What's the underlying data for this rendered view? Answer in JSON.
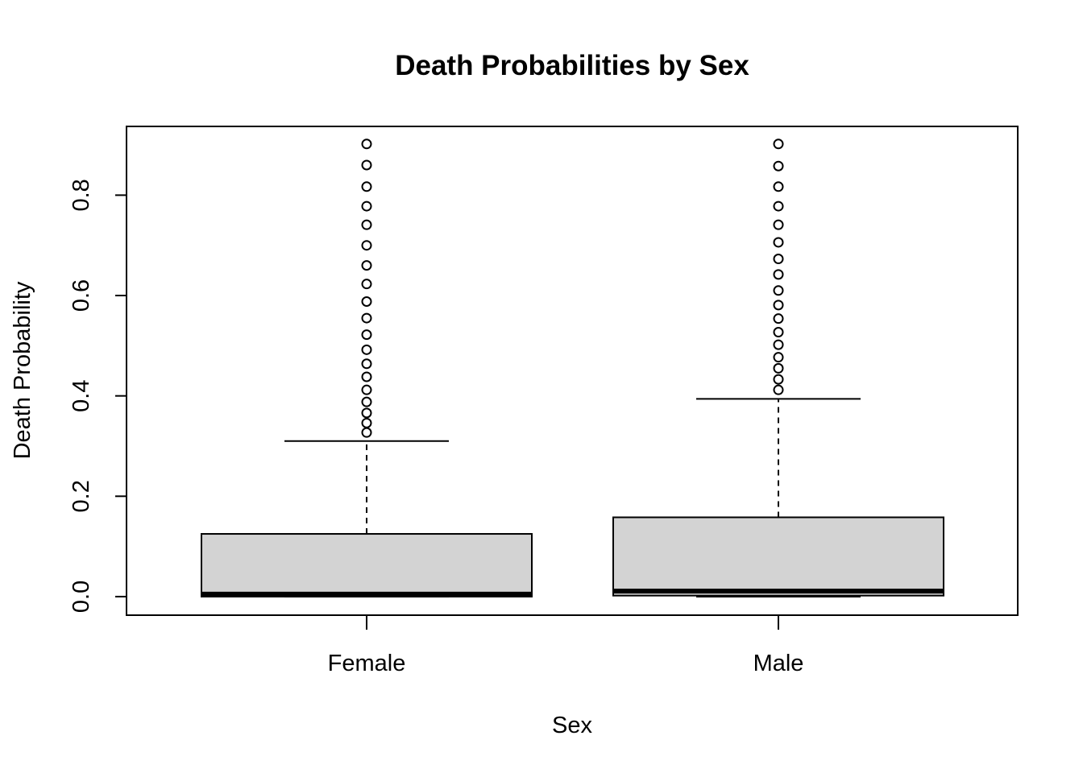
{
  "chart_data": {
    "type": "boxplot",
    "title": "Death Probabilities by Sex",
    "xlabel": "Sex",
    "ylabel": "Death Probability",
    "ylim": [
      -0.037,
      0.937
    ],
    "yticks": [
      "0.0",
      "0.2",
      "0.4",
      "0.6",
      "0.8"
    ],
    "categories": [
      "Female",
      "Male"
    ],
    "box_color": "#d3d3d3",
    "grid": false,
    "boxes": [
      {
        "category": "Female",
        "whisker_low": 0.0,
        "q1": 0.0,
        "median": 0.005,
        "q3": 0.125,
        "whisker_high": 0.31,
        "outliers": [
          0.327,
          0.346,
          0.366,
          0.388,
          0.412,
          0.438,
          0.464,
          0.492,
          0.522,
          0.555,
          0.588,
          0.623,
          0.66,
          0.7,
          0.741,
          0.778,
          0.817,
          0.86,
          0.902
        ]
      },
      {
        "category": "Male",
        "whisker_low": 0.0,
        "q1": 0.002,
        "median": 0.011,
        "q3": 0.158,
        "whisker_high": 0.394,
        "outliers": [
          0.412,
          0.433,
          0.455,
          0.477,
          0.502,
          0.527,
          0.554,
          0.581,
          0.61,
          0.642,
          0.673,
          0.706,
          0.741,
          0.778,
          0.817,
          0.858,
          0.902
        ]
      }
    ]
  }
}
